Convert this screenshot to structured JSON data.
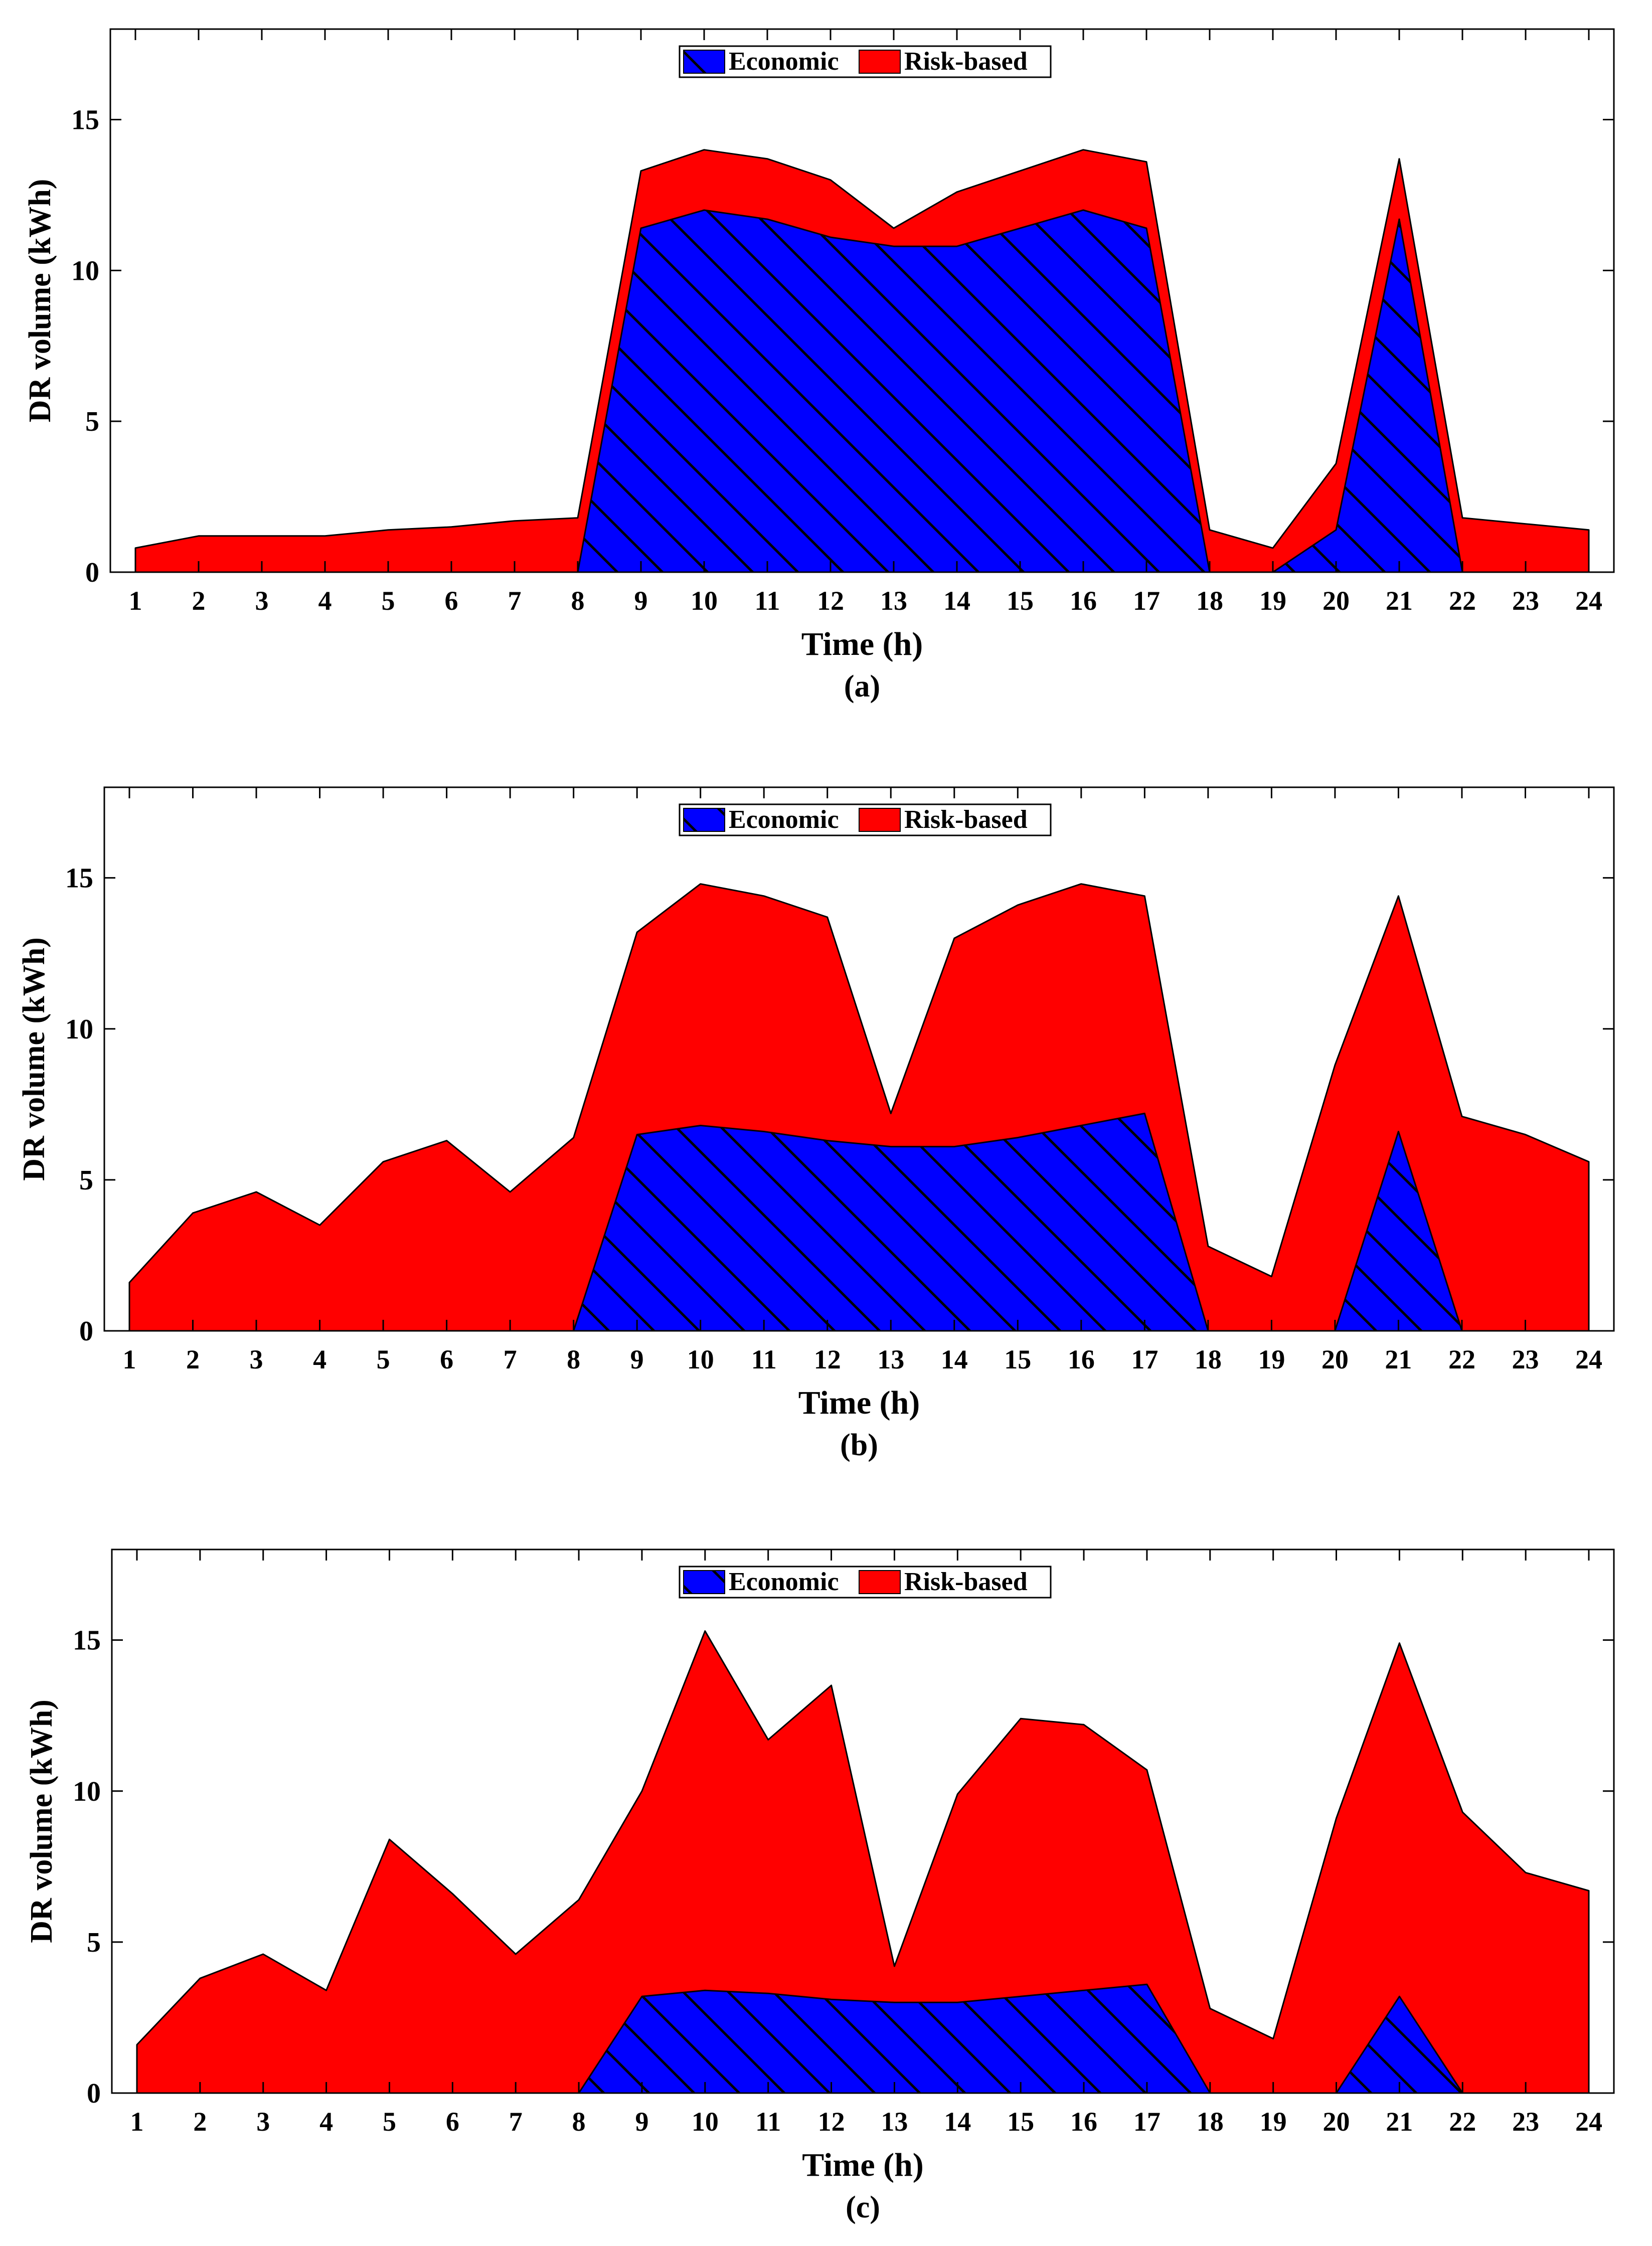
{
  "colors": {
    "economic": "#0000ff",
    "risk": "#ff0000",
    "hatch": "#000000",
    "axis": "#000000"
  },
  "chart_data": [
    {
      "type": "area",
      "caption": "(a)",
      "xlabel": "Time (h)",
      "ylabel": "DR volume (kWh)",
      "xlim": [
        1,
        24
      ],
      "ylim": [
        0,
        18
      ],
      "yticks": [
        0,
        5,
        10,
        15
      ],
      "x": [
        1,
        2,
        3,
        4,
        5,
        6,
        7,
        8,
        9,
        10,
        11,
        12,
        13,
        14,
        15,
        16,
        17,
        18,
        19,
        20,
        21,
        22,
        23,
        24
      ],
      "legend": {
        "position": "top-center",
        "entries": [
          "Economic",
          "Risk-based"
        ]
      },
      "series": [
        {
          "name": "Economic",
          "hatch": true,
          "values": [
            0,
            0,
            0,
            0,
            0,
            0,
            0,
            0,
            11.4,
            12,
            11.7,
            11.1,
            10.8,
            10.8,
            11.4,
            12,
            11.4,
            0,
            0,
            1.4,
            11.7,
            0,
            0,
            0
          ]
        },
        {
          "name": "Risk-based",
          "hatch": false,
          "values": [
            0.8,
            1.2,
            1.2,
            1.2,
            1.4,
            1.5,
            1.7,
            1.8,
            13.3,
            14,
            13.7,
            13,
            11.4,
            12.6,
            13.3,
            14,
            13.6,
            1.4,
            0.8,
            3.6,
            13.7,
            1.8,
            1.6,
            1.4
          ]
        }
      ]
    },
    {
      "type": "area",
      "caption": "(b)",
      "xlabel": "Time (h)",
      "ylabel": "DR volume (kWh)",
      "xlim": [
        1,
        24
      ],
      "ylim": [
        0,
        18
      ],
      "yticks": [
        0,
        5,
        10,
        15
      ],
      "x": [
        1,
        2,
        3,
        4,
        5,
        6,
        7,
        8,
        9,
        10,
        11,
        12,
        13,
        14,
        15,
        16,
        17,
        18,
        19,
        20,
        21,
        22,
        23,
        24
      ],
      "legend": {
        "position": "top-center",
        "entries": [
          "Economic",
          "Risk-based"
        ]
      },
      "series": [
        {
          "name": "Economic",
          "hatch": true,
          "values": [
            0,
            0,
            0,
            0,
            0,
            0,
            0,
            0,
            6.5,
            6.8,
            6.6,
            6.3,
            6.1,
            6.1,
            6.4,
            6.8,
            7.2,
            0,
            0,
            0,
            6.6,
            0,
            0,
            0
          ]
        },
        {
          "name": "Risk-based",
          "hatch": false,
          "values": [
            1.6,
            3.9,
            4.6,
            3.5,
            5.6,
            6.3,
            4.6,
            6.4,
            13.2,
            14.8,
            14.4,
            13.7,
            7.2,
            13,
            14.1,
            14.8,
            14.4,
            2.8,
            1.8,
            8.8,
            14.4,
            7.1,
            6.5,
            5.6
          ]
        }
      ]
    },
    {
      "type": "area",
      "caption": "(c)",
      "xlabel": "Time (h)",
      "ylabel": "DR volume (kWh)",
      "xlim": [
        1,
        24
      ],
      "ylim": [
        0,
        18
      ],
      "yticks": [
        0,
        5,
        10,
        15
      ],
      "x": [
        1,
        2,
        3,
        4,
        5,
        6,
        7,
        8,
        9,
        10,
        11,
        12,
        13,
        14,
        15,
        16,
        17,
        18,
        19,
        20,
        21,
        22,
        23,
        24
      ],
      "legend": {
        "position": "top-center",
        "entries": [
          "Economic",
          "Risk-based"
        ]
      },
      "series": [
        {
          "name": "Economic",
          "hatch": true,
          "values": [
            0,
            0,
            0,
            0,
            0,
            0,
            0,
            0,
            3.2,
            3.4,
            3.3,
            3.1,
            3.0,
            3.0,
            3.2,
            3.4,
            3.6,
            0,
            0,
            0,
            3.2,
            0,
            0,
            0
          ]
        },
        {
          "name": "Risk-based",
          "hatch": false,
          "values": [
            1.6,
            3.8,
            4.6,
            3.4,
            8.4,
            6.6,
            4.6,
            6.4,
            10,
            15.3,
            11.7,
            13.5,
            4.2,
            9.9,
            12.4,
            12.2,
            10.7,
            2.8,
            1.8,
            9.1,
            14.9,
            9.3,
            7.3,
            6.7
          ]
        }
      ]
    }
  ]
}
